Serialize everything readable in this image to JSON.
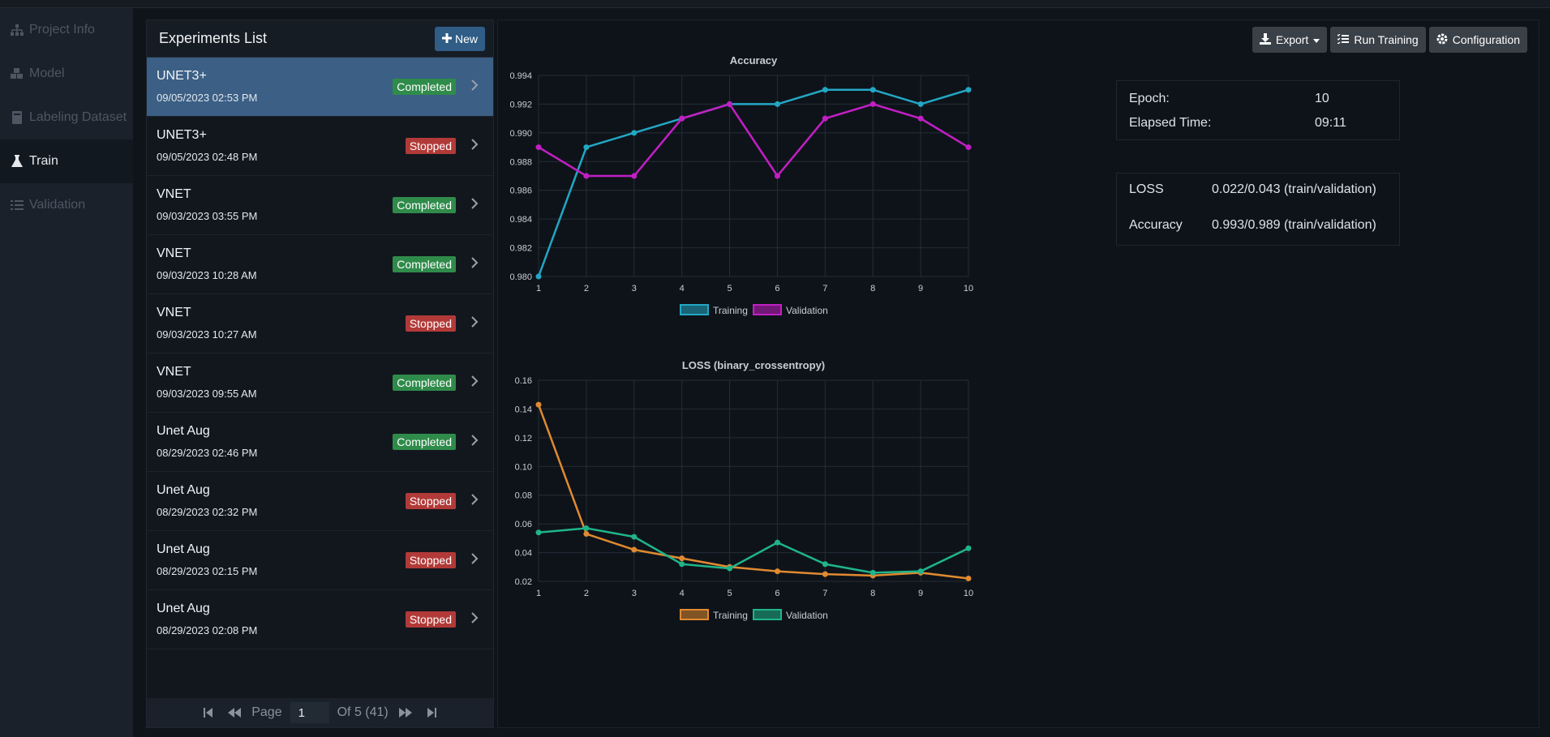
{
  "sidebar": {
    "items": [
      {
        "label": "Project Info",
        "icon": "sitemap-icon"
      },
      {
        "label": "Model",
        "icon": "cubes-icon"
      },
      {
        "label": "Labeling Dataset",
        "icon": "book-icon"
      },
      {
        "label": "Train",
        "icon": "flask-icon",
        "active": true
      },
      {
        "label": "Validation",
        "icon": "list-check-icon"
      }
    ]
  },
  "experiments": {
    "title": "Experiments List",
    "new_label": "New",
    "items": [
      {
        "name": "UNET3+",
        "date": "09/05/2023 02:53 PM",
        "status": "Completed",
        "selected": true
      },
      {
        "name": "UNET3+",
        "date": "09/05/2023 02:48 PM",
        "status": "Stopped"
      },
      {
        "name": "VNET",
        "date": "09/03/2023 03:55 PM",
        "status": "Completed"
      },
      {
        "name": "VNET",
        "date": "09/03/2023 10:28 AM",
        "status": "Completed"
      },
      {
        "name": "VNET",
        "date": "09/03/2023 10:27 AM",
        "status": "Stopped"
      },
      {
        "name": "VNET",
        "date": "09/03/2023 09:55 AM",
        "status": "Completed"
      },
      {
        "name": "Unet Aug",
        "date": "08/29/2023 02:46 PM",
        "status": "Completed"
      },
      {
        "name": "Unet Aug",
        "date": "08/29/2023 02:32 PM",
        "status": "Stopped"
      },
      {
        "name": "Unet Aug",
        "date": "08/29/2023 02:15 PM",
        "status": "Stopped"
      },
      {
        "name": "Unet Aug",
        "date": "08/29/2023 02:08 PM",
        "status": "Stopped"
      }
    ],
    "pager": {
      "page_label": "Page",
      "page_value": "1",
      "of_label": "Of 5 (41)"
    }
  },
  "toolbar": {
    "export_label": "Export",
    "run_label": "Run Training",
    "config_label": "Configuration"
  },
  "stats": {
    "epoch_label": "Epoch:",
    "epoch_value": "10",
    "elapsed_label": "Elapsed Time:",
    "elapsed_value": "09:11",
    "loss_label": "LOSS",
    "loss_value": "0.022/0.043 (train/validation)",
    "acc_label": "Accuracy",
    "acc_value": "0.993/0.989 (train/validation)"
  },
  "colors": {
    "acc_train": "#22a7c4",
    "acc_val": "#c21fc4",
    "loss_train": "#e08a30",
    "loss_val": "#1fb58a",
    "completed": "#2f8b4a",
    "stopped": "#b13a38"
  },
  "chart_data": [
    {
      "type": "line",
      "title": "Accuracy",
      "x": [
        1,
        2,
        3,
        4,
        5,
        6,
        7,
        8,
        9,
        10
      ],
      "ylim": [
        0.98,
        0.994
      ],
      "yticks": [
        "0.994",
        "0.992",
        "0.990",
        "0.988",
        "0.986",
        "0.984",
        "0.982",
        "0.980"
      ],
      "grid": true,
      "legend": "bottom",
      "series": [
        {
          "name": "Training",
          "values": [
            0.98,
            0.989,
            0.99,
            0.991,
            0.992,
            0.992,
            0.993,
            0.993,
            0.992,
            0.993
          ]
        },
        {
          "name": "Validation",
          "values": [
            0.989,
            0.987,
            0.987,
            0.991,
            0.992,
            0.987,
            0.991,
            0.992,
            0.991,
            0.989
          ]
        }
      ]
    },
    {
      "type": "line",
      "title": "LOSS (binary_crossentropy)",
      "x": [
        1,
        2,
        3,
        4,
        5,
        6,
        7,
        8,
        9,
        10
      ],
      "ylim": [
        0.02,
        0.16
      ],
      "yticks": [
        "0.16",
        "0.14",
        "0.12",
        "0.10",
        "0.08",
        "0.06",
        "0.04",
        "0.02"
      ],
      "grid": true,
      "legend": "bottom",
      "series": [
        {
          "name": "Training",
          "values": [
            0.143,
            0.053,
            0.042,
            0.036,
            0.03,
            0.027,
            0.025,
            0.024,
            0.026,
            0.022
          ]
        },
        {
          "name": "Validation",
          "values": [
            0.054,
            0.057,
            0.051,
            0.032,
            0.029,
            0.047,
            0.032,
            0.026,
            0.027,
            0.043
          ]
        }
      ]
    }
  ]
}
